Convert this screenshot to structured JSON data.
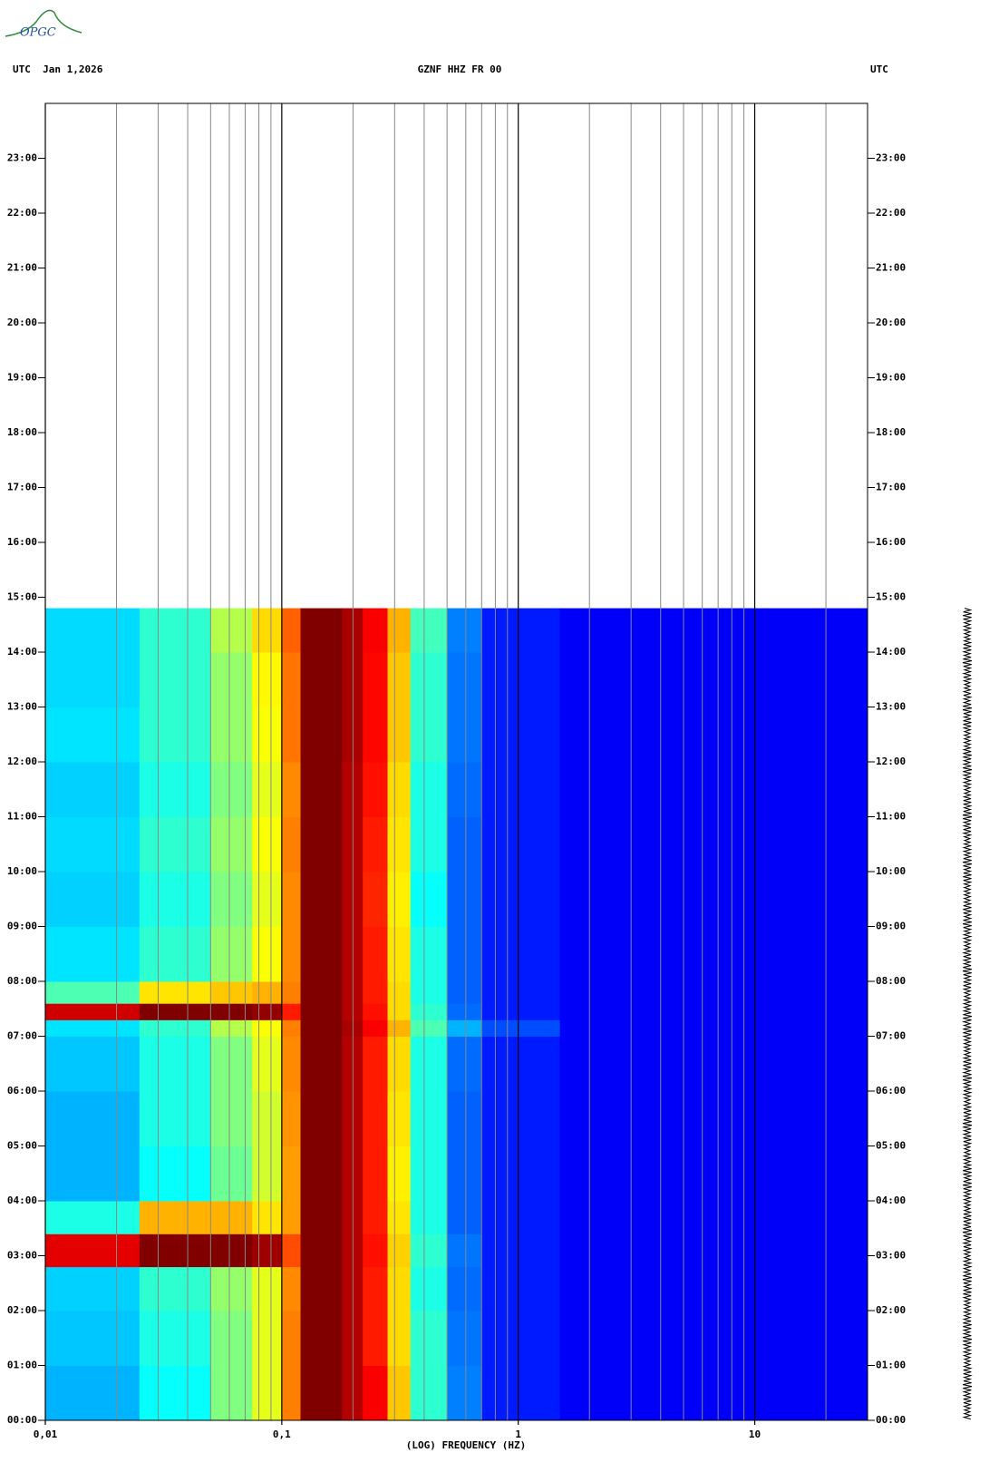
{
  "logo": "OPGC",
  "chart_data": {
    "type": "spectrogram",
    "title_left": "UTC  Jan 1,2026",
    "title": "GZNF HHZ FR 00",
    "title_right": "UTC",
    "xlabel": "(LOG) FREQUENCY (HZ)",
    "xscale": "log",
    "xlim": [
      0.01,
      30
    ],
    "xticks": [
      {
        "value": 0.01,
        "label": "0,01"
      },
      {
        "value": 0.1,
        "label": "0,1"
      },
      1,
      10
    ],
    "xminor": [
      0.02,
      0.03,
      0.04,
      0.05,
      0.06,
      0.07,
      0.08,
      0.09,
      0.2,
      0.3,
      0.4,
      0.5,
      0.6,
      0.7,
      0.8,
      0.9,
      2,
      3,
      4,
      5,
      6,
      7,
      8,
      9,
      20
    ],
    "ylim": [
      0,
      24
    ],
    "yticks": [
      {
        "value": 0,
        "label": "00:00"
      },
      {
        "value": 1,
        "label": "01:00"
      },
      {
        "value": 2,
        "label": "02:00"
      },
      {
        "value": 3,
        "label": "03:00"
      },
      {
        "value": 4,
        "label": "04:00"
      },
      {
        "value": 5,
        "label": "05:00"
      },
      {
        "value": 6,
        "label": "06:00"
      },
      {
        "value": 7,
        "label": "07:00"
      },
      {
        "value": 8,
        "label": "08:00"
      },
      {
        "value": 9,
        "label": "09:00"
      },
      {
        "value": 10,
        "label": "10:00"
      },
      {
        "value": 11,
        "label": "11:00"
      },
      {
        "value": 12,
        "label": "12:00"
      },
      {
        "value": 13,
        "label": "13:00"
      },
      {
        "value": 14,
        "label": "14:00"
      },
      {
        "value": 15,
        "label": "15:00"
      },
      {
        "value": 16,
        "label": "16:00"
      },
      {
        "value": 17,
        "label": "17:00"
      },
      {
        "value": 18,
        "label": "18:00"
      },
      {
        "value": 19,
        "label": "19:00"
      },
      {
        "value": 20,
        "label": "20:00"
      },
      {
        "value": 21,
        "label": "21:00"
      },
      {
        "value": 22,
        "label": "22:00"
      },
      {
        "value": 23,
        "label": "23:00"
      }
    ],
    "colormap": "jet",
    "clim": [
      0,
      1
    ],
    "x_bins": [
      0.01,
      0.025,
      0.05,
      0.075,
      0.1,
      0.12,
      0.18,
      0.22,
      0.28,
      0.35,
      0.5,
      0.7,
      1.5,
      30
    ],
    "y_bins": [
      0,
      1,
      2,
      2.8,
      3.4,
      4,
      5,
      6,
      7,
      7.3,
      7.6,
      8,
      9,
      10,
      11,
      12,
      13,
      14,
      14.8
    ],
    "values": [
      [
        0.3,
        0.38,
        0.5,
        0.6,
        0.75,
        1,
        0.95,
        0.88,
        0.68,
        0.42,
        0.25,
        0.15,
        0.12
      ],
      [
        0.32,
        0.4,
        0.5,
        0.6,
        0.75,
        1,
        0.95,
        0.85,
        0.66,
        0.42,
        0.24,
        0.15,
        0.12
      ],
      [
        0.33,
        0.42,
        0.52,
        0.6,
        0.74,
        1,
        0.95,
        0.85,
        0.66,
        0.4,
        0.23,
        0.15,
        0.12
      ],
      [
        0.9,
        1,
        1,
        0.97,
        0.8,
        1,
        0.95,
        0.86,
        0.67,
        0.42,
        0.24,
        0.15,
        0.12
      ],
      [
        0.4,
        0.7,
        0.7,
        0.65,
        0.72,
        1,
        0.95,
        0.85,
        0.65,
        0.4,
        0.22,
        0.15,
        0.12
      ],
      [
        0.3,
        0.38,
        0.48,
        0.58,
        0.72,
        1,
        0.95,
        0.85,
        0.64,
        0.4,
        0.22,
        0.15,
        0.12
      ],
      [
        0.3,
        0.4,
        0.5,
        0.58,
        0.73,
        1,
        0.95,
        0.85,
        0.65,
        0.4,
        0.22,
        0.15,
        0.12
      ],
      [
        0.32,
        0.4,
        0.5,
        0.6,
        0.74,
        1,
        0.95,
        0.85,
        0.66,
        0.4,
        0.23,
        0.15,
        0.12
      ],
      [
        0.35,
        0.42,
        0.55,
        0.62,
        0.75,
        1,
        0.96,
        0.88,
        0.7,
        0.45,
        0.3,
        0.2,
        0.12
      ],
      [
        0.92,
        1,
        1,
        0.98,
        0.85,
        1,
        0.95,
        0.86,
        0.66,
        0.42,
        0.23,
        0.15,
        0.12
      ],
      [
        0.45,
        0.65,
        0.68,
        0.7,
        0.75,
        1,
        0.95,
        0.85,
        0.66,
        0.4,
        0.22,
        0.15,
        0.12
      ],
      [
        0.35,
        0.42,
        0.52,
        0.62,
        0.74,
        1,
        0.95,
        0.85,
        0.65,
        0.4,
        0.22,
        0.15,
        0.12
      ],
      [
        0.33,
        0.4,
        0.5,
        0.6,
        0.74,
        1,
        0.95,
        0.84,
        0.64,
        0.38,
        0.22,
        0.15,
        0.12
      ],
      [
        0.34,
        0.42,
        0.52,
        0.62,
        0.75,
        1,
        0.95,
        0.85,
        0.65,
        0.4,
        0.22,
        0.15,
        0.12
      ],
      [
        0.33,
        0.4,
        0.5,
        0.6,
        0.74,
        1,
        0.95,
        0.86,
        0.66,
        0.4,
        0.23,
        0.15,
        0.12
      ],
      [
        0.35,
        0.42,
        0.52,
        0.62,
        0.76,
        1,
        0.96,
        0.87,
        0.68,
        0.42,
        0.24,
        0.15,
        0.12
      ],
      [
        0.34,
        0.42,
        0.52,
        0.63,
        0.76,
        1,
        0.96,
        0.87,
        0.68,
        0.42,
        0.24,
        0.15,
        0.12
      ],
      [
        0.34,
        0.42,
        0.55,
        0.66,
        0.78,
        1,
        0.96,
        0.88,
        0.7,
        0.44,
        0.25,
        0.15,
        0.12
      ]
    ]
  }
}
